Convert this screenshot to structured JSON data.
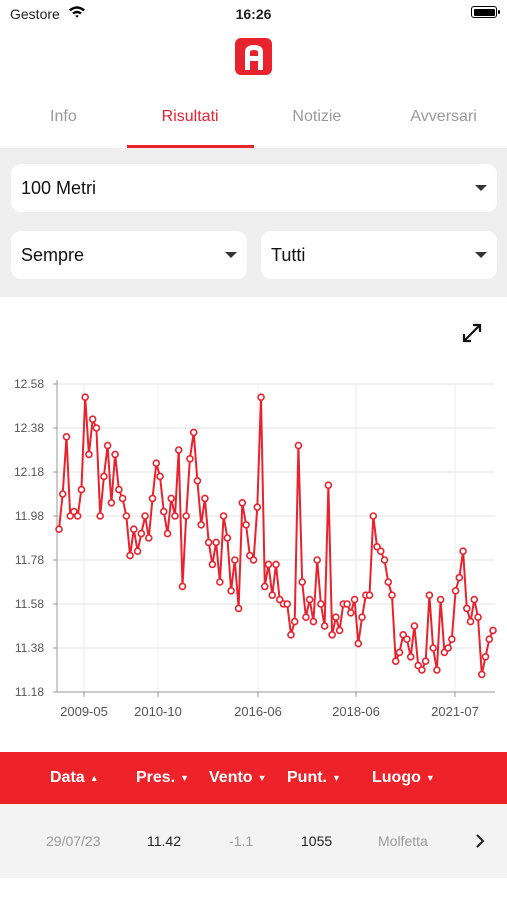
{
  "status_bar": {
    "carrier": "Gestore",
    "time": "16:26"
  },
  "app": {
    "logo_letter": "A"
  },
  "tabs": [
    {
      "label": "Info",
      "active": false
    },
    {
      "label": "Risultati",
      "active": true
    },
    {
      "label": "Notizie",
      "active": false
    },
    {
      "label": "Avversari",
      "active": false
    }
  ],
  "filters": {
    "event": "100 Metri",
    "period": "Sempre",
    "type": "Tutti"
  },
  "colors": {
    "accent": "#e8232e",
    "header": "#ee2229"
  },
  "chart_data": {
    "type": "line",
    "x_ticks": [
      "2009-05",
      "2010-10",
      "2016-06",
      "2018-06",
      "2021-07"
    ],
    "y_ticks": [
      "12.58",
      "12.38",
      "12.18",
      "11.98",
      "11.78",
      "11.58",
      "11.38",
      "11.18"
    ],
    "ylim": [
      11.18,
      12.58
    ],
    "grid": true,
    "values": [
      11.92,
      12.08,
      12.34,
      11.98,
      12.0,
      11.98,
      12.1,
      12.52,
      12.26,
      12.42,
      12.38,
      11.98,
      12.16,
      12.3,
      12.04,
      12.26,
      12.1,
      12.06,
      11.98,
      11.8,
      11.92,
      11.82,
      11.9,
      11.98,
      11.88,
      12.06,
      12.22,
      12.16,
      12.0,
      11.9,
      12.06,
      11.98,
      12.28,
      11.66,
      11.98,
      12.24,
      12.36,
      12.14,
      11.94,
      12.06,
      11.86,
      11.76,
      11.86,
      11.68,
      11.98,
      11.88,
      11.64,
      11.78,
      11.56,
      12.04,
      11.94,
      11.8,
      11.78,
      12.02,
      12.52,
      11.66,
      11.76,
      11.62,
      11.76,
      11.6,
      11.58,
      11.58,
      11.44,
      11.5,
      12.3,
      11.68,
      11.52,
      11.6,
      11.5,
      11.78,
      11.58,
      11.48,
      12.12,
      11.44,
      11.52,
      11.46,
      11.58,
      11.58,
      11.54,
      11.6,
      11.4,
      11.52,
      11.62,
      11.62,
      11.98,
      11.84,
      11.82,
      11.78,
      11.68,
      11.62,
      11.32,
      11.36,
      11.44,
      11.42,
      11.34,
      11.48,
      11.3,
      11.28,
      11.32,
      11.62,
      11.38,
      11.28,
      11.6,
      11.36,
      11.38,
      11.42,
      11.64,
      11.7,
      11.82,
      11.56,
      11.5,
      11.6,
      11.52,
      11.26,
      11.34,
      11.42,
      11.46
    ]
  },
  "table": {
    "columns": [
      "Data",
      "Pres.",
      "Vento",
      "Punt.",
      "Luogo"
    ],
    "rows": [
      {
        "date": "29/07/23",
        "performance": "11.42",
        "wind": "-1.1",
        "points": "1055",
        "place": "Molfetta"
      }
    ]
  }
}
